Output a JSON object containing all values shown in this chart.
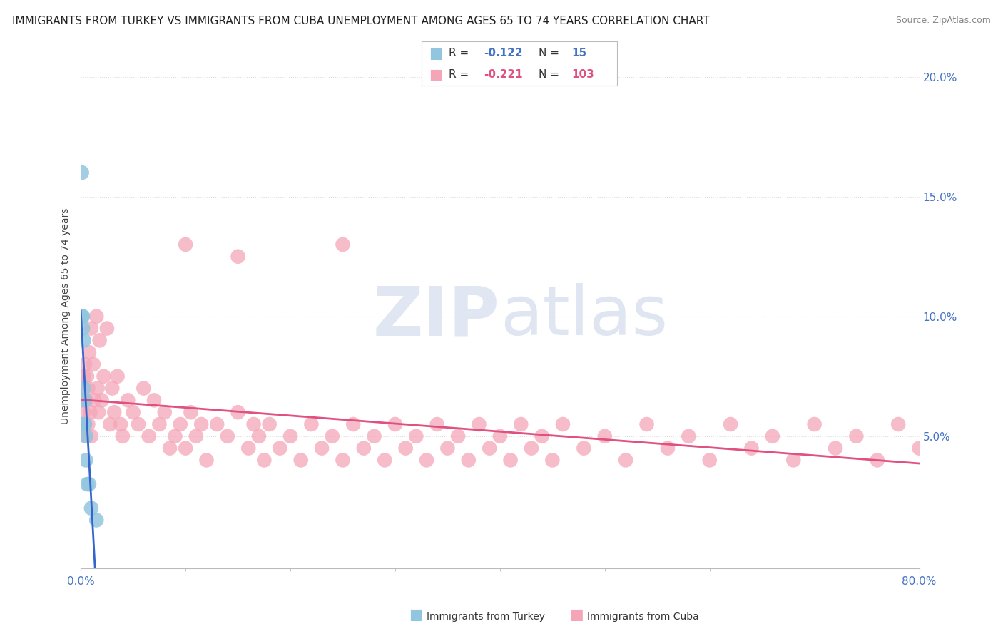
{
  "title": "IMMIGRANTS FROM TURKEY VS IMMIGRANTS FROM CUBA UNEMPLOYMENT AMONG AGES 65 TO 74 YEARS CORRELATION CHART",
  "source": "Source: ZipAtlas.com",
  "ylabel": "Unemployment Among Ages 65 to 74 years",
  "xlim": [
    0.0,
    0.8
  ],
  "ylim": [
    -0.005,
    0.205
  ],
  "yticks": [
    0.0,
    0.05,
    0.1,
    0.15,
    0.2
  ],
  "ytick_labels": [
    "",
    "5.0%",
    "10.0%",
    "15.0%",
    "20.0%"
  ],
  "turkey_color": "#92C5DE",
  "cuba_color": "#F4A6B8",
  "turkey_line_color": "#3366CC",
  "cuba_line_color": "#E05080",
  "turkey_dash_color": "#AABBD0",
  "turkey_R": -0.122,
  "turkey_N": 15,
  "cuba_R": -0.221,
  "cuba_N": 103,
  "turkey_x": [
    0.001,
    0.001,
    0.002,
    0.002,
    0.002,
    0.003,
    0.003,
    0.004,
    0.004,
    0.005,
    0.005,
    0.006,
    0.008,
    0.01,
    0.015
  ],
  "turkey_y": [
    0.16,
    0.1,
    0.1,
    0.095,
    0.055,
    0.09,
    0.07,
    0.065,
    0.055,
    0.05,
    0.04,
    0.03,
    0.03,
    0.02,
    0.015
  ],
  "cuba_x": [
    0.001,
    0.002,
    0.002,
    0.003,
    0.003,
    0.004,
    0.004,
    0.005,
    0.005,
    0.006,
    0.007,
    0.007,
    0.008,
    0.009,
    0.01,
    0.01,
    0.012,
    0.013,
    0.015,
    0.016,
    0.017,
    0.018,
    0.02,
    0.022,
    0.025,
    0.028,
    0.03,
    0.032,
    0.035,
    0.038,
    0.04,
    0.045,
    0.05,
    0.055,
    0.06,
    0.065,
    0.07,
    0.075,
    0.08,
    0.085,
    0.09,
    0.095,
    0.1,
    0.105,
    0.11,
    0.115,
    0.12,
    0.13,
    0.14,
    0.15,
    0.16,
    0.165,
    0.17,
    0.175,
    0.18,
    0.19,
    0.2,
    0.21,
    0.22,
    0.23,
    0.24,
    0.25,
    0.26,
    0.27,
    0.28,
    0.29,
    0.3,
    0.31,
    0.32,
    0.33,
    0.34,
    0.35,
    0.36,
    0.37,
    0.38,
    0.39,
    0.4,
    0.41,
    0.42,
    0.43,
    0.44,
    0.45,
    0.46,
    0.48,
    0.5,
    0.52,
    0.54,
    0.56,
    0.58,
    0.6,
    0.62,
    0.64,
    0.66,
    0.68,
    0.7,
    0.72,
    0.74,
    0.76,
    0.78,
    0.8,
    0.1,
    0.15,
    0.25
  ],
  "cuba_y": [
    0.065,
    0.07,
    0.055,
    0.075,
    0.06,
    0.08,
    0.055,
    0.065,
    0.05,
    0.075,
    0.07,
    0.055,
    0.085,
    0.06,
    0.095,
    0.05,
    0.08,
    0.065,
    0.1,
    0.07,
    0.06,
    0.09,
    0.065,
    0.075,
    0.095,
    0.055,
    0.07,
    0.06,
    0.075,
    0.055,
    0.05,
    0.065,
    0.06,
    0.055,
    0.07,
    0.05,
    0.065,
    0.055,
    0.06,
    0.045,
    0.05,
    0.055,
    0.045,
    0.06,
    0.05,
    0.055,
    0.04,
    0.055,
    0.05,
    0.06,
    0.045,
    0.055,
    0.05,
    0.04,
    0.055,
    0.045,
    0.05,
    0.04,
    0.055,
    0.045,
    0.05,
    0.04,
    0.055,
    0.045,
    0.05,
    0.04,
    0.055,
    0.045,
    0.05,
    0.04,
    0.055,
    0.045,
    0.05,
    0.04,
    0.055,
    0.045,
    0.05,
    0.04,
    0.055,
    0.045,
    0.05,
    0.04,
    0.055,
    0.045,
    0.05,
    0.04,
    0.055,
    0.045,
    0.05,
    0.04,
    0.055,
    0.045,
    0.05,
    0.04,
    0.055,
    0.045,
    0.05,
    0.04,
    0.055,
    0.045,
    0.13,
    0.125,
    0.13
  ],
  "watermark_zip": "ZIP",
  "watermark_atlas": "atlas",
  "background_color": "#FFFFFF",
  "grid_color": "#DDDDDD",
  "title_fontsize": 11,
  "source_fontsize": 9,
  "tick_label_fontsize": 11,
  "tick_color": "#4472C4"
}
